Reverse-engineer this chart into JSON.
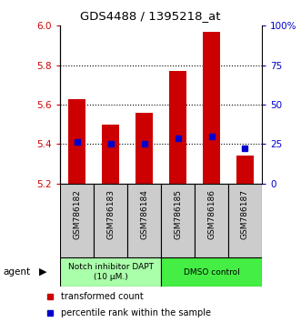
{
  "title": "GDS4488 / 1395218_at",
  "categories": [
    "GSM786182",
    "GSM786183",
    "GSM786184",
    "GSM786185",
    "GSM786186",
    "GSM786187"
  ],
  "bar_tops": [
    5.63,
    5.5,
    5.56,
    5.77,
    5.97,
    5.34
  ],
  "bar_bottom": 5.2,
  "blue_markers": [
    5.41,
    5.4,
    5.4,
    5.43,
    5.44,
    5.38
  ],
  "ylim": [
    5.2,
    6.0
  ],
  "left_yticks": [
    5.2,
    5.4,
    5.6,
    5.8,
    6.0
  ],
  "right_ylim": [
    0,
    100
  ],
  "right_yticks": [
    0,
    25,
    50,
    75,
    100
  ],
  "right_yticklabels": [
    "0",
    "25",
    "50",
    "75",
    "100%"
  ],
  "bar_color": "#cc0000",
  "blue_color": "#0000cc",
  "left_tick_color": "#cc0000",
  "right_tick_color": "#0000cc",
  "agent_groups": [
    {
      "label": "Notch inhibitor DAPT\n(10 μM.)",
      "start": 0,
      "end": 2,
      "color": "#aaffaa"
    },
    {
      "label": "DMSO control",
      "start": 3,
      "end": 5,
      "color": "#44ee44"
    }
  ],
  "legend_items": [
    {
      "label": "transformed count",
      "color": "#cc0000"
    },
    {
      "label": "percentile rank within the sample",
      "color": "#0000cc"
    }
  ],
  "figsize": [
    3.31,
    3.54
  ],
  "dpi": 100
}
